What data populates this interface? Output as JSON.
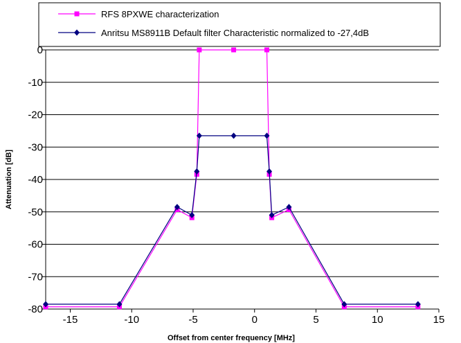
{
  "chart_data": {
    "type": "line",
    "title": "",
    "xlabel": "Offset from center frequency [MHz]",
    "ylabel": "Attenuation [dB]",
    "xlim": [
      -17,
      15
    ],
    "ylim": [
      -80,
      0
    ],
    "xticks": [
      -15,
      -10,
      -5,
      0,
      5,
      10,
      15
    ],
    "yticks": [
      0,
      -10,
      -20,
      -30,
      -40,
      -50,
      -60,
      -70,
      -80
    ],
    "grid": "horizontal",
    "legend": "top",
    "series": [
      {
        "name": "RFS 8PXWE characterization",
        "color": "#ff00ff",
        "marker": "square",
        "x": [
          -17,
          -11,
          -6.3,
          -5.1,
          -4.7,
          -4.5,
          -1.7,
          1.0,
          1.2,
          1.4,
          2.8,
          7.3,
          13.3
        ],
        "y": [
          -79.3,
          -79.3,
          -49.3,
          -51.8,
          -38.4,
          0,
          0,
          0,
          -38.4,
          -51.8,
          -49.3,
          -79.3,
          -79.3
        ]
      },
      {
        "name": "Anritsu MS8911B Default filter Characteristic normalized to -27,4dB",
        "color": "#000080",
        "marker": "diamond",
        "x": [
          -17,
          -11,
          -6.3,
          -5.1,
          -4.7,
          -4.5,
          -1.7,
          1.0,
          1.2,
          1.4,
          2.8,
          7.3,
          13.3
        ],
        "y": [
          -78.5,
          -78.5,
          -48.5,
          -51.0,
          -37.5,
          -26.5,
          -26.5,
          -26.5,
          -37.5,
          -51.0,
          -48.5,
          -78.5,
          -78.5
        ]
      }
    ]
  }
}
